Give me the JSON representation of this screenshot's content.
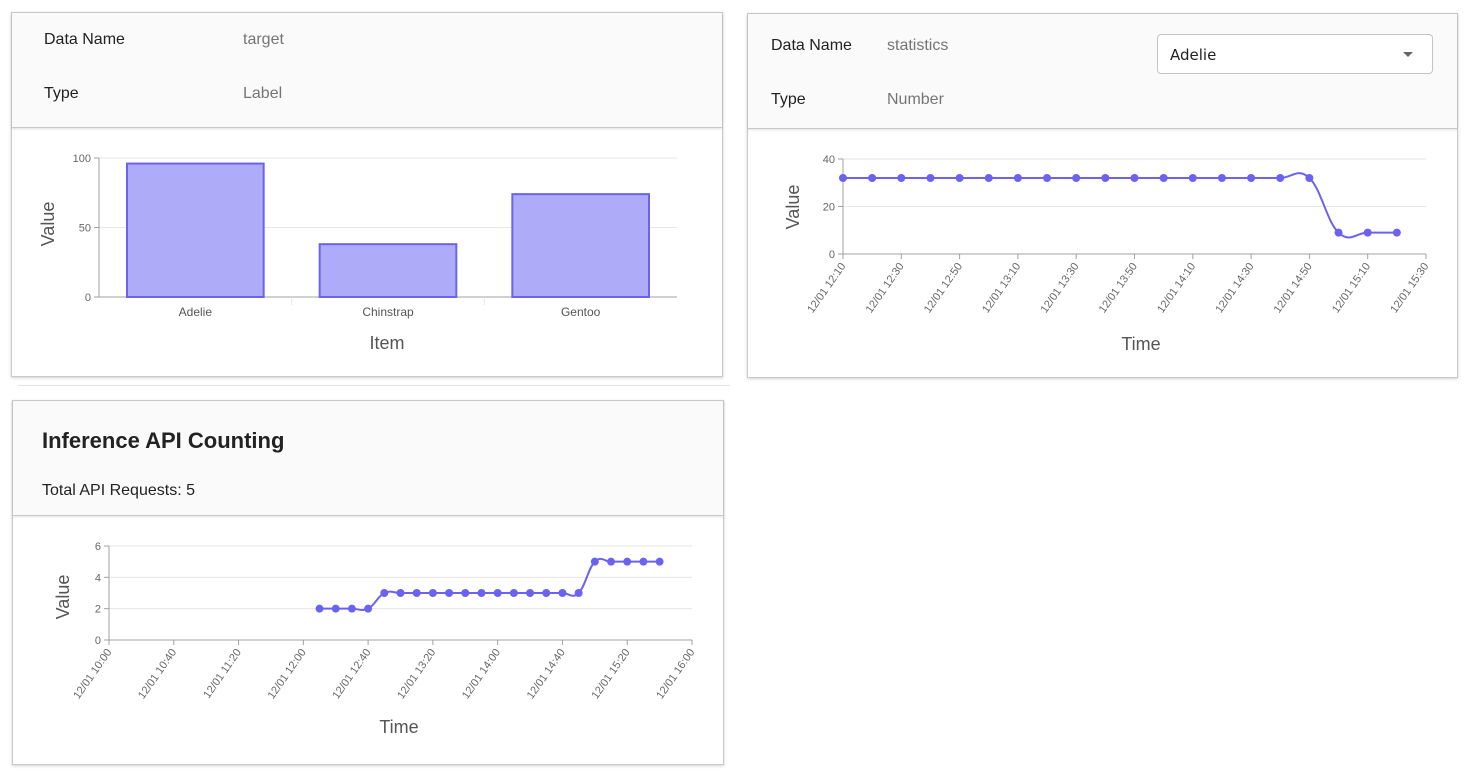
{
  "card_target": {
    "data_name_label": "Data Name",
    "data_name_value": "target",
    "type_label": "Type",
    "type_value": "Label"
  },
  "card_statistics": {
    "data_name_label": "Data Name",
    "data_name_value": "statistics",
    "type_label": "Type",
    "type_value": "Number",
    "selected_option": "Adelie"
  },
  "card_inference": {
    "title": "Inference API Counting",
    "total_label": "Total API Requests: 5"
  },
  "colors": {
    "series": "#6b63f0",
    "bar_fill": "#aeabf9",
    "grid": "#e6e6e6",
    "axis": "#a0a0a0"
  },
  "chart_data": [
    {
      "id": "target",
      "type": "bar",
      "categories": [
        "Adelie",
        "Chinstrap",
        "Gentoo"
      ],
      "values": [
        96,
        38,
        74
      ],
      "xlabel": "Item",
      "ylabel": "Value",
      "ylim": [
        0,
        100
      ],
      "yticks": [
        0,
        50,
        100
      ],
      "grid": true,
      "legend": "none"
    },
    {
      "id": "statistics",
      "type": "line",
      "xlabel": "Time",
      "ylabel": "Value",
      "ylim": [
        0,
        40
      ],
      "yticks": [
        0,
        20,
        40
      ],
      "xticks": [
        "12/01 12:10",
        "12/01 12:30",
        "12/01 12:50",
        "12/01 13:10",
        "12/01 13:30",
        "12/01 13:50",
        "12/01 14:10",
        "12/01 14:30",
        "12/01 14:50",
        "12/01 15:10",
        "12/01 15:30"
      ],
      "x_start": "12/01 12:10",
      "x_step_minutes": 10,
      "values": [
        32,
        32,
        32,
        32,
        32,
        32,
        32,
        32,
        32,
        32,
        32,
        32,
        32,
        32,
        32,
        32,
        32,
        9,
        9,
        9
      ],
      "grid": true,
      "legend": "none"
    },
    {
      "id": "inference",
      "type": "line",
      "xlabel": "Time",
      "ylabel": "Value",
      "ylim": [
        0,
        6
      ],
      "yticks": [
        0,
        2,
        4,
        6
      ],
      "xticks": [
        "12/01 10:00",
        "12/01 10:40",
        "12/01 11:20",
        "12/01 12:00",
        "12/01 12:40",
        "12/01 13:20",
        "12/01 14:00",
        "12/01 14:40",
        "12/01 15:20",
        "12/01 16:00"
      ],
      "x_start": "12/01 12:10",
      "x_step_minutes": 10,
      "values": [
        2,
        2,
        2,
        2,
        3,
        3,
        3,
        3,
        3,
        3,
        3,
        3,
        3,
        3,
        3,
        3,
        3,
        5,
        5,
        5,
        5,
        5
      ],
      "grid": true,
      "legend": "none"
    }
  ]
}
